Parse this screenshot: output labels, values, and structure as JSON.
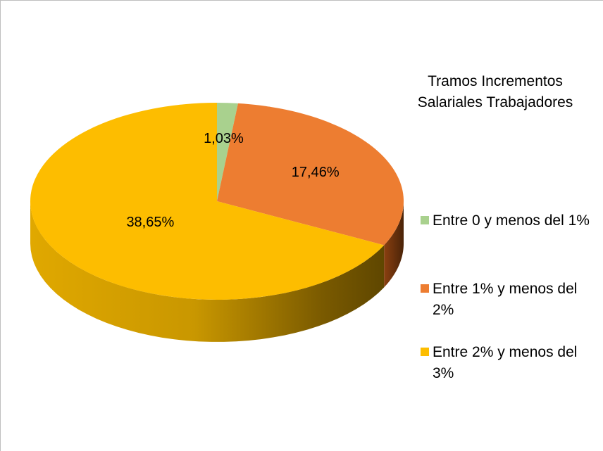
{
  "chart_data": {
    "type": "pie",
    "title": "Tramos Incrementos Salariales Trabajadores",
    "categories": [
      "Entre 0 y menos del 1%",
      "Entre 1% y menos del 2%",
      "Entre 2% y menos del 3%"
    ],
    "values": [
      1.03,
      17.46,
      38.65
    ],
    "value_labels": [
      "1,03%",
      "17,46%",
      "38,65%"
    ],
    "colors": [
      "#a9d18e",
      "#ed7d31",
      "#fdbd00"
    ]
  }
}
